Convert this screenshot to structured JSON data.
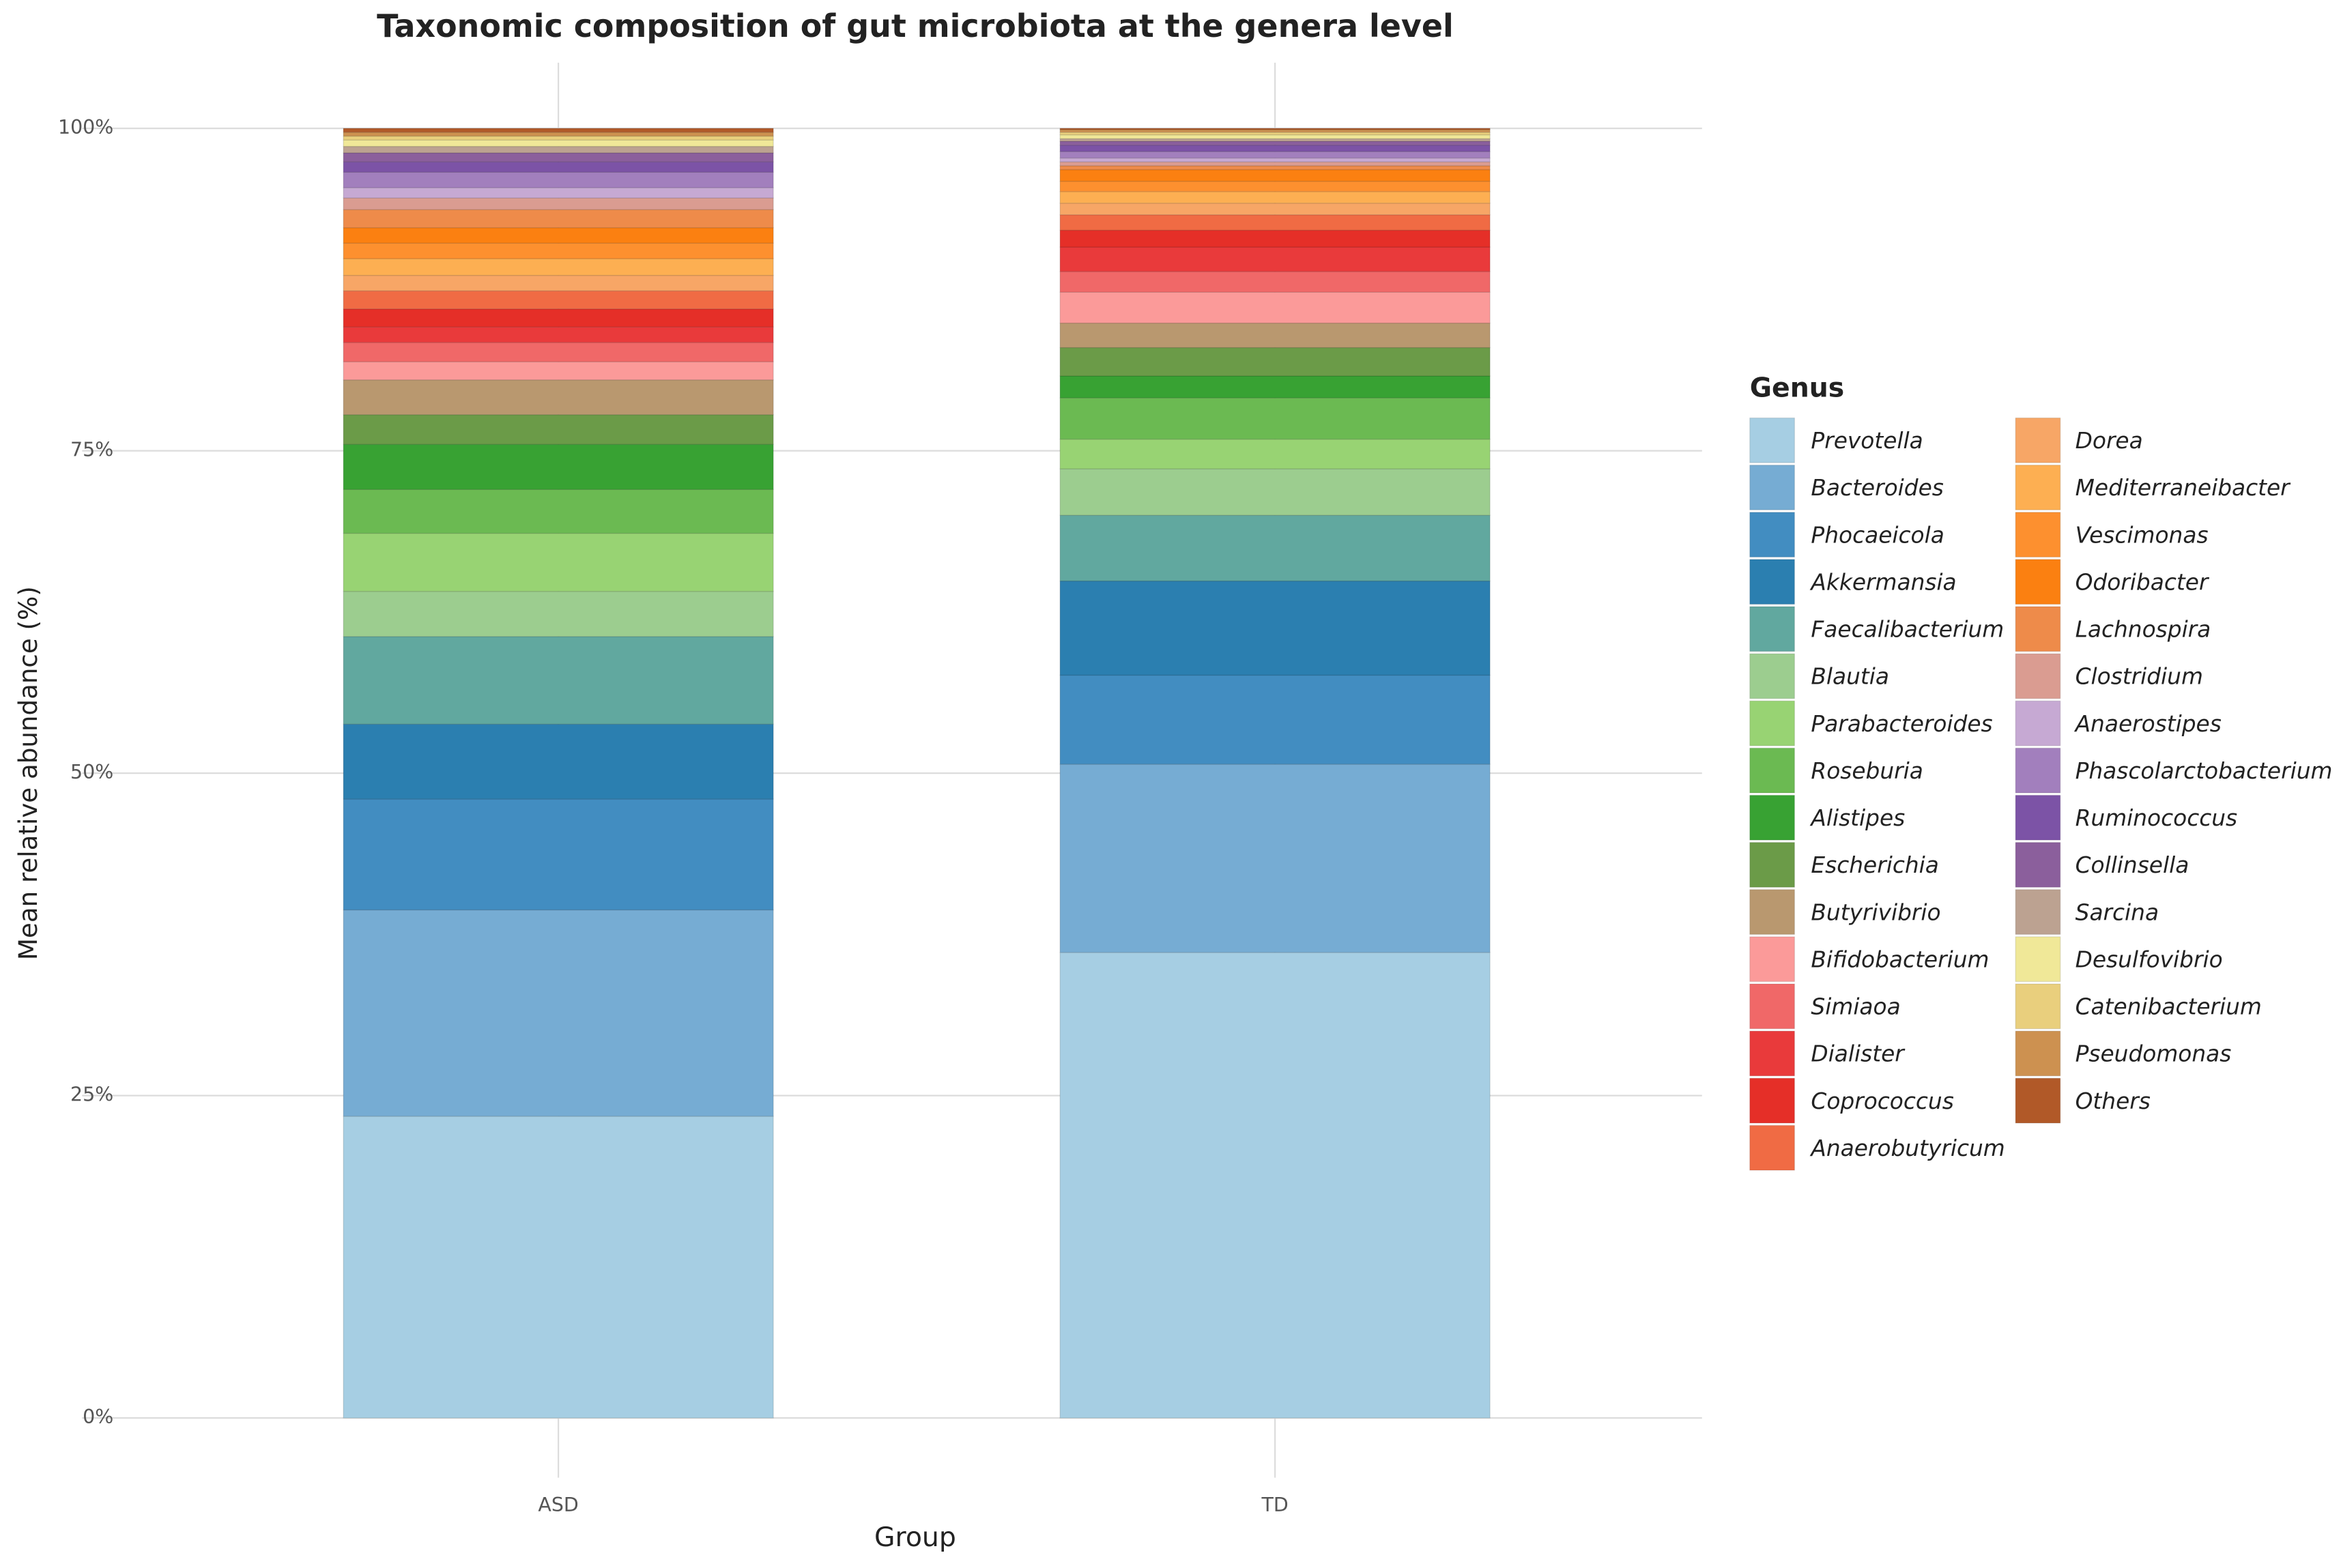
{
  "chart_data": {
    "type": "stacked_bar",
    "title": "Taxonomic composition of gut microbiota at the genera level",
    "x_label": "Group",
    "y_label": "Mean relative abundance (%)",
    "legend_title": "Genus",
    "categories": [
      "ASD",
      "TD"
    ],
    "ylim": [
      0,
      100
    ],
    "yticks": [
      {
        "value": 0,
        "label": "0%"
      },
      {
        "value": 25,
        "label": "25%"
      },
      {
        "value": 50,
        "label": "50%"
      },
      {
        "value": 75,
        "label": "75%"
      },
      {
        "value": 100,
        "label": "100%"
      }
    ],
    "grid": true,
    "series": [
      {
        "name": "Prevotella",
        "color": "#a6cee3",
        "values": [
          23.4,
          36.1
        ]
      },
      {
        "name": "Bacteroides",
        "color": "#76acd3",
        "values": [
          16.0,
          14.6
        ]
      },
      {
        "name": "Phocaeicola",
        "color": "#428dc1",
        "values": [
          8.6,
          6.9
        ]
      },
      {
        "name": "Akkermansia",
        "color": "#2b7fb0",
        "values": [
          5.8,
          7.3
        ]
      },
      {
        "name": "Faecalibacterium",
        "color": "#61a89f",
        "values": [
          6.8,
          5.1
        ]
      },
      {
        "name": "Blautia",
        "color": "#9ccd8f",
        "values": [
          3.5,
          3.6
        ]
      },
      {
        "name": "Parabacteroides",
        "color": "#98d373",
        "values": [
          4.5,
          2.3
        ]
      },
      {
        "name": "Roseburia",
        "color": "#6bba52",
        "values": [
          3.4,
          3.2
        ]
      },
      {
        "name": "Alistipes",
        "color": "#38a233",
        "values": [
          3.5,
          1.7
        ]
      },
      {
        "name": "Escherichia",
        "color": "#6b9b48",
        "values": [
          2.3,
          2.2
        ]
      },
      {
        "name": "Butyrivibrio",
        "color": "#b9986f",
        "values": [
          2.7,
          1.9
        ]
      },
      {
        "name": "Bifidobacterium",
        "color": "#fb9a99",
        "values": [
          1.4,
          2.4
        ]
      },
      {
        "name": "Simiaoa",
        "color": "#f06868",
        "values": [
          1.5,
          1.6
        ]
      },
      {
        "name": "Dialister",
        "color": "#e93a3b",
        "values": [
          1.2,
          1.9
        ]
      },
      {
        "name": "Coprococcus",
        "color": "#e52f28",
        "values": [
          1.4,
          1.3
        ]
      },
      {
        "name": "Anaerobutyricum",
        "color": "#f06b44",
        "values": [
          1.4,
          1.2
        ]
      },
      {
        "name": "Dorea",
        "color": "#f7a666",
        "values": [
          1.2,
          0.9
        ]
      },
      {
        "name": "Mediterraneibacter",
        "color": "#fdaf52",
        "values": [
          1.3,
          0.9
        ]
      },
      {
        "name": "Vescimonas",
        "color": "#fd902f",
        "values": [
          1.2,
          0.8
        ]
      },
      {
        "name": "Odoribacter",
        "color": "#fb8011",
        "values": [
          1.2,
          0.9
        ]
      },
      {
        "name": "Lachnospira",
        "color": "#ee8b4a",
        "values": [
          1.4,
          0.3
        ]
      },
      {
        "name": "Clostridium",
        "color": "#da9c91",
        "values": [
          0.9,
          0.3
        ]
      },
      {
        "name": "Anaerostipes",
        "color": "#c6a9d3",
        "values": [
          0.8,
          0.3
        ]
      },
      {
        "name": "Phascolarctobacterium",
        "color": "#a27fbd",
        "values": [
          1.2,
          0.5
        ]
      },
      {
        "name": "Ruminococcus",
        "color": "#7c53a6",
        "values": [
          0.8,
          0.5
        ]
      },
      {
        "name": "Collinsella",
        "color": "#8b5f9c",
        "values": [
          0.7,
          0.3
        ]
      },
      {
        "name": "Sarcina",
        "color": "#bca291",
        "values": [
          0.5,
          0.2
        ]
      },
      {
        "name": "Desulfovibrio",
        "color": "#f0e898",
        "values": [
          0.5,
          0.3
        ]
      },
      {
        "name": "Catenibacterium",
        "color": "#e9cf7d",
        "values": [
          0.3,
          0.2
        ]
      },
      {
        "name": "Pseudomonas",
        "color": "#cd9150",
        "values": [
          0.3,
          0.2
        ]
      },
      {
        "name": "Others",
        "color": "#b15928",
        "values": [
          0.3,
          0.1
        ]
      }
    ]
  }
}
